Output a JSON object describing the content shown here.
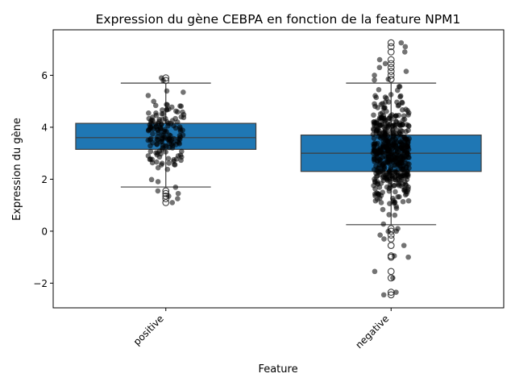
{
  "chart_data": {
    "type": "box",
    "title": "Expression du gène CEBPA en fonction de la feature NPM1",
    "xlabel": "Feature",
    "ylabel": "Expression du gène",
    "categories": [
      "positive",
      "negative"
    ],
    "ylim": [
      -2.95,
      7.75
    ],
    "yticks": [
      -2,
      0,
      2,
      4,
      6
    ],
    "ytick_labels": [
      "−2",
      "0",
      "2",
      "4",
      "6"
    ],
    "grid": false,
    "box_color": "#1f77b4",
    "point_color": "#000000",
    "boxes": [
      {
        "category": "positive",
        "whisker_low": 1.7,
        "q1": 3.15,
        "median": 3.6,
        "q3": 4.15,
        "whisker_high": 5.7,
        "outliers": [
          1.1,
          1.25,
          1.35,
          1.45,
          1.55,
          5.8,
          5.9
        ],
        "n_points": 160,
        "point_range": [
          1.1,
          5.9
        ]
      },
      {
        "category": "negative",
        "whisker_low": 0.25,
        "q1": 2.3,
        "median": 3.0,
        "q3": 3.7,
        "whisker_high": 5.7,
        "outliers": [
          -2.45,
          -2.35,
          -1.8,
          -1.55,
          -1.0,
          -0.95,
          -0.55,
          -0.3,
          -0.15,
          0.0,
          0.1,
          5.85,
          6.0,
          6.15,
          6.3,
          6.45,
          6.6,
          6.9,
          7.1,
          7.25
        ],
        "n_points": 520,
        "point_range": [
          -2.45,
          7.25
        ]
      }
    ]
  }
}
